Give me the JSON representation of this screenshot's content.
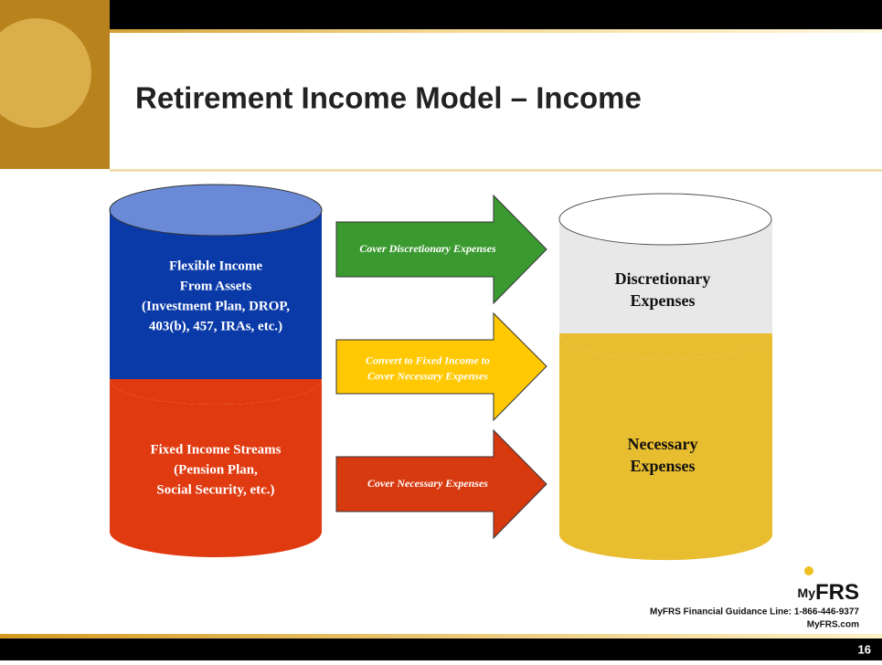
{
  "header": {
    "title": "Retirement Income Model – Income"
  },
  "left": {
    "top": [
      "Flexible Income",
      "From Assets",
      "(Investment Plan, DROP,",
      "403(b), 457, IRAs, etc.)"
    ],
    "bottom": [
      "Fixed Income Streams",
      "(Pension Plan,",
      "Social Security, etc.)"
    ]
  },
  "arrows": [
    {
      "label": [
        "Cover Discretionary Expenses"
      ]
    },
    {
      "label": [
        "Convert to Fixed Income to",
        "Cover Necessary Expenses"
      ]
    },
    {
      "label": [
        "Cover Necessary Expenses"
      ]
    }
  ],
  "right": {
    "top": [
      "Discretionary",
      "Expenses"
    ],
    "bottom": [
      "Necessary",
      "Expenses"
    ]
  },
  "footer": {
    "logo_my": "My",
    "logo_frs": "FRS",
    "line": "MyFRS Financial Guidance Line: 1-866-446-9377",
    "site": "MyFRS.com",
    "page": "16"
  }
}
